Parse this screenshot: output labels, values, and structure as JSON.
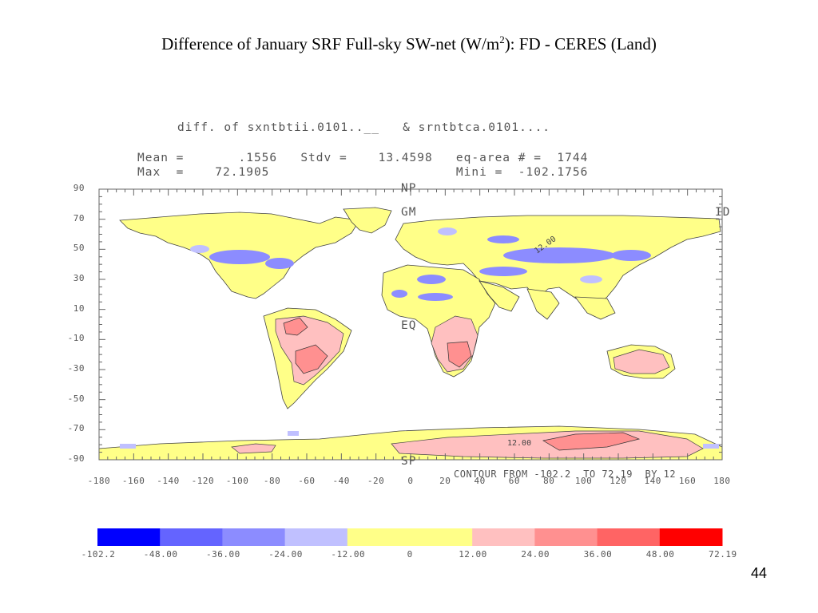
{
  "slide": {
    "title_main": "Difference of January SRF Full-sky SW-net (W/m",
    "title_sup": "2",
    "title_tail": "): FD - CERES (Land)",
    "page_number": "44"
  },
  "plot_header": {
    "line1": "diff. of sxntbtii.0101..__   & srntbtca.0101....",
    "line2": "Mean =       .1556   Stdv =    13.4598   eq-area # =  1744",
    "line3": "Max  =    72.1905                        Mini =  -102.1756"
  },
  "map_labels": {
    "np": "NP",
    "gm": "GM",
    "id": "ID",
    "eq": "EQ",
    "sp": "SP",
    "contour_note": "CONTOUR FROM -102.2  TO 72.19  BY 12",
    "contour_label_1": "12.00",
    "contour_label_2": "12.00"
  },
  "y_ticks": [
    "90",
    "70",
    "50",
    "30",
    "10",
    "-10",
    "-30",
    "-50",
    "-70",
    "-90"
  ],
  "x_ticks": [
    "-180",
    "-160",
    "-140",
    "-120",
    "-100",
    "-80",
    "-60",
    "-40",
    "-20",
    "0",
    "20",
    "40",
    "60",
    "80",
    "100",
    "120",
    "140",
    "160",
    "180"
  ],
  "colorbar": {
    "colors": [
      "#0000ff",
      "#6464ff",
      "#8c8cff",
      "#c0c0ff",
      "#ffff88",
      "#ffff88",
      "#ffc0c0",
      "#ff9090",
      "#ff6464",
      "#ff0000"
    ],
    "labels": [
      "-102.2",
      "-48.00",
      "-36.00",
      "-24.00",
      "-12.00",
      "0",
      "12.00",
      "24.00",
      "36.00",
      "48.00",
      "72.19"
    ]
  },
  "colors": {
    "land_neutral": "#ffff88",
    "blue_light": "#c0c0ff",
    "blue_mid": "#8c8cff",
    "pink_light": "#ffc0c0",
    "pink_mid": "#ff9090"
  }
}
